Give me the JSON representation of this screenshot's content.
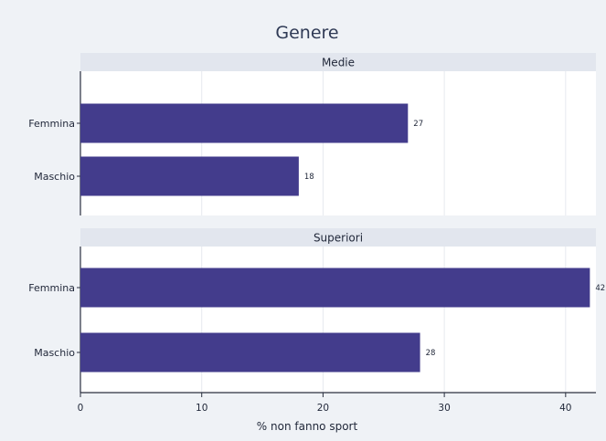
{
  "chart_data": {
    "type": "bar",
    "orientation": "horizontal",
    "title": "Genere",
    "xlabel": "% non fanno sport",
    "xlim": [
      0,
      42.5
    ],
    "xticks": [
      0,
      10,
      20,
      30,
      40
    ],
    "grid": "vertical",
    "colors": {
      "bar": "#433c8c",
      "background": "#eff2f6",
      "panel": "#ffffff",
      "strip": "#e2e6ee",
      "grid": "#e6e9ef",
      "axis": "#2a2f3f"
    },
    "panels": [
      {
        "label": "Medie",
        "categories": [
          "Femmina",
          "Maschio"
        ],
        "values": [
          27,
          18
        ],
        "value_labels": [
          "27",
          "18"
        ]
      },
      {
        "label": "Superiori",
        "categories": [
          "Femmina",
          "Maschio"
        ],
        "values": [
          42,
          28
        ],
        "value_labels": [
          "42",
          "28"
        ]
      }
    ]
  }
}
